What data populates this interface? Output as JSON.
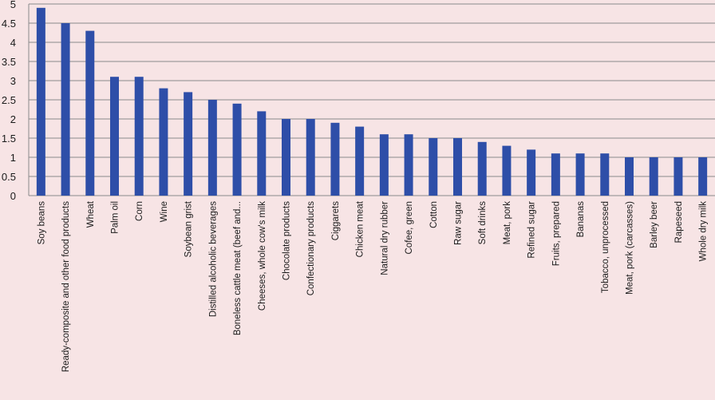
{
  "chart_data": {
    "type": "bar",
    "title": "",
    "xlabel": "",
    "ylabel": "",
    "ylim": [
      0,
      5
    ],
    "yticks": [
      "0",
      "0.5",
      "1",
      "1.5",
      "2",
      "2.5",
      "3",
      "3.5",
      "4",
      "4.5",
      "5"
    ],
    "grid": true,
    "legend": "none",
    "bar_color": "#2e4ea8",
    "categories": [
      "Soy beans",
      "Ready-composite and other food products",
      "Wheat",
      "Palm oil",
      "Corn",
      "Wine",
      "Soybean grist",
      "Distilled alcoholic beverages",
      "Boneless cattle meat (beef and...",
      "Cheeses, whole cow's milk",
      "Chocolate products",
      "Confectionary products",
      "Ciggarets",
      "Chicken meat",
      "Natural dry rubber",
      "Cofee, green",
      "Cotton",
      "Raw sugar",
      "Soft drinks",
      "Meat, pork",
      "Refined sugar",
      "Fruits, prepared",
      "Bananas",
      "Tobacco, unprocessed",
      "Meat, pork (carcasses)",
      "Barley beer",
      "Rapeseed",
      "Whole dry milk"
    ],
    "values": [
      4.9,
      4.5,
      4.3,
      3.1,
      3.1,
      2.8,
      2.7,
      2.5,
      2.4,
      2.2,
      2.0,
      2.0,
      1.9,
      1.8,
      1.6,
      1.6,
      1.5,
      1.5,
      1.4,
      1.3,
      1.2,
      1.1,
      1.1,
      1.1,
      1.0,
      1.0,
      1.0,
      1.0
    ]
  }
}
